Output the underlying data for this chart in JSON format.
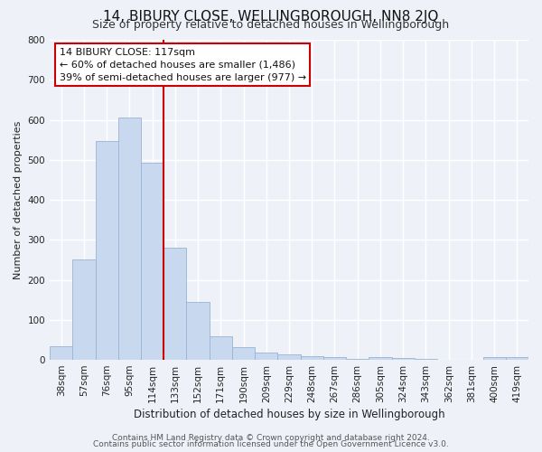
{
  "title": "14, BIBURY CLOSE, WELLINGBOROUGH, NN8 2JQ",
  "subtitle": "Size of property relative to detached houses in Wellingborough",
  "xlabel": "Distribution of detached houses by size in Wellingborough",
  "ylabel": "Number of detached properties",
  "bar_labels": [
    "38sqm",
    "57sqm",
    "76sqm",
    "95sqm",
    "114sqm",
    "133sqm",
    "152sqm",
    "171sqm",
    "190sqm",
    "209sqm",
    "229sqm",
    "248sqm",
    "267sqm",
    "286sqm",
    "305sqm",
    "324sqm",
    "343sqm",
    "362sqm",
    "381sqm",
    "400sqm",
    "419sqm"
  ],
  "bar_values": [
    35,
    250,
    548,
    605,
    492,
    280,
    145,
    60,
    32,
    18,
    14,
    10,
    8,
    2,
    6,
    5,
    2,
    1,
    0,
    8,
    8
  ],
  "bar_color": "#c8d8ee",
  "bar_edge_color": "#9ab4d4",
  "vline_color": "#cc0000",
  "vline_x_index": 4,
  "annotation_title": "14 BIBURY CLOSE: 117sqm",
  "annotation_line1": "← 60% of detached houses are smaller (1,486)",
  "annotation_line2": "39% of semi-detached houses are larger (977) →",
  "annotation_box_facecolor": "#ffffff",
  "annotation_box_edgecolor": "#cc0000",
  "ylim": [
    0,
    800
  ],
  "yticks": [
    0,
    100,
    200,
    300,
    400,
    500,
    600,
    700,
    800
  ],
  "background_color": "#eef2f8",
  "grid_color": "#ffffff",
  "title_fontsize": 11,
  "subtitle_fontsize": 9,
  "xlabel_fontsize": 8.5,
  "ylabel_fontsize": 8,
  "tick_fontsize": 7.5,
  "annotation_fontsize": 8,
  "footer_fontsize": 6.5,
  "footer_line1": "Contains HM Land Registry data © Crown copyright and database right 2024.",
  "footer_line2": "Contains public sector information licensed under the Open Government Licence v3.0."
}
